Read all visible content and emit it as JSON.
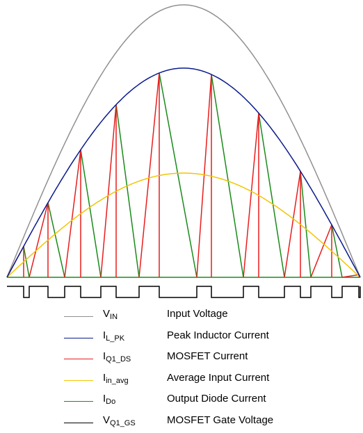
{
  "colors": {
    "input_voltage": "#909090",
    "peak_inductor": "#0a1a8c",
    "mosfet_current": "#e81c1c",
    "avg_input": "#f2c500",
    "diode_current": "#1a8a1a",
    "gate_voltage": "#000000"
  },
  "legend": [
    {
      "symbol": "V",
      "sub": "IN",
      "label": "Input Voltage",
      "color_key": "input_voltage"
    },
    {
      "symbol": "I",
      "sub": "L_PK",
      "label": "Peak Inductor Current",
      "color_key": "peak_inductor"
    },
    {
      "symbol": "I",
      "sub": "Q1_DS",
      "label": "MOSFET Current",
      "color_key": "mosfet_current"
    },
    {
      "symbol": "I",
      "sub": "in_avg",
      "label": "Average Input Current",
      "color_key": "avg_input"
    },
    {
      "symbol": "I",
      "sub": "Do",
      "label": "Output Diode Current",
      "color_key": "diode_current"
    },
    {
      "symbol": "V",
      "sub": "Q1_GS",
      "label": "MOSFET Gate Voltage",
      "color_key": "gate_voltage"
    }
  ]
}
